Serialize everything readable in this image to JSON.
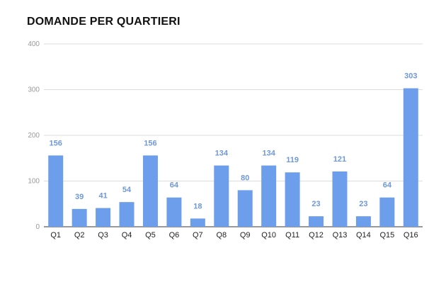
{
  "chart_data": {
    "type": "bar",
    "title": "DOMANDE PER QUARTIERI",
    "categories": [
      "Q1",
      "Q2",
      "Q3",
      "Q4",
      "Q5",
      "Q6",
      "Q7",
      "Q8",
      "Q9",
      "Q10",
      "Q11",
      "Q12",
      "Q13",
      "Q14",
      "Q15",
      "Q16"
    ],
    "values": [
      156,
      39,
      41,
      54,
      156,
      64,
      18,
      134,
      80,
      134,
      119,
      23,
      121,
      23,
      64,
      303
    ],
    "ylim": [
      0,
      400
    ],
    "yticks": [
      0,
      100,
      200,
      300,
      400
    ],
    "grid": true,
    "bar_color": "#6d9eeb",
    "data_label_color": "#6f98d8",
    "xlabel": "",
    "ylabel": ""
  }
}
